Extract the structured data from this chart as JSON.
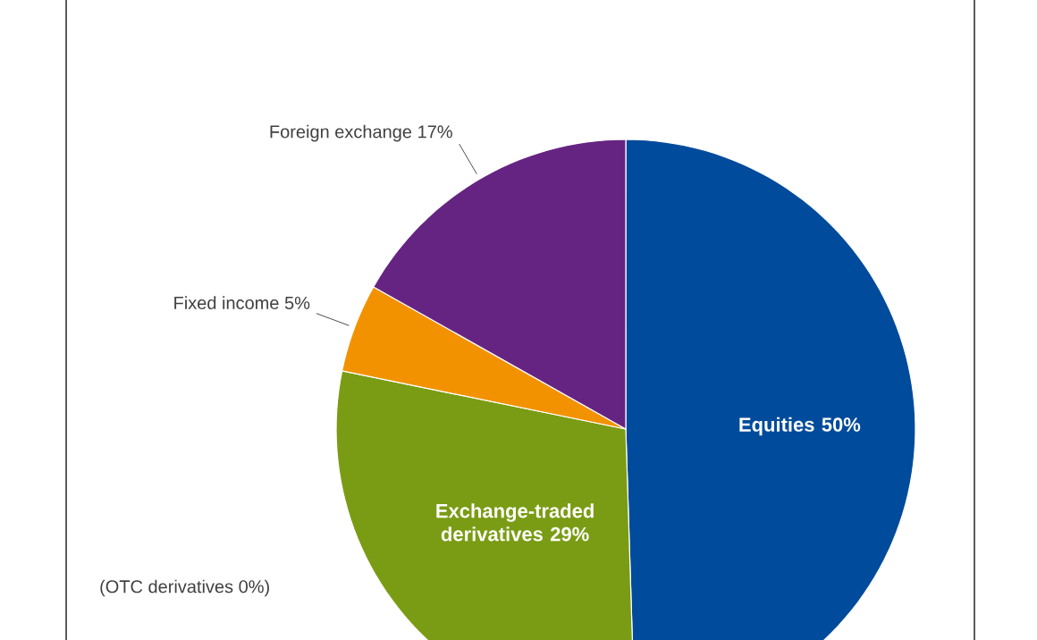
{
  "chart_data": {
    "type": "pie",
    "categories": [
      "Equities",
      "Exchange-traded derivatives",
      "Fixed income",
      "Foreign exchange"
    ],
    "values": [
      50,
      29,
      5,
      17
    ],
    "value_labels": [
      "50%",
      "29%",
      "5%",
      "17%"
    ],
    "colors": [
      "#004b9b",
      "#7a9c14",
      "#f39200",
      "#662482"
    ],
    "annotations": [
      "(OTC derivatives 0%)"
    ]
  }
}
